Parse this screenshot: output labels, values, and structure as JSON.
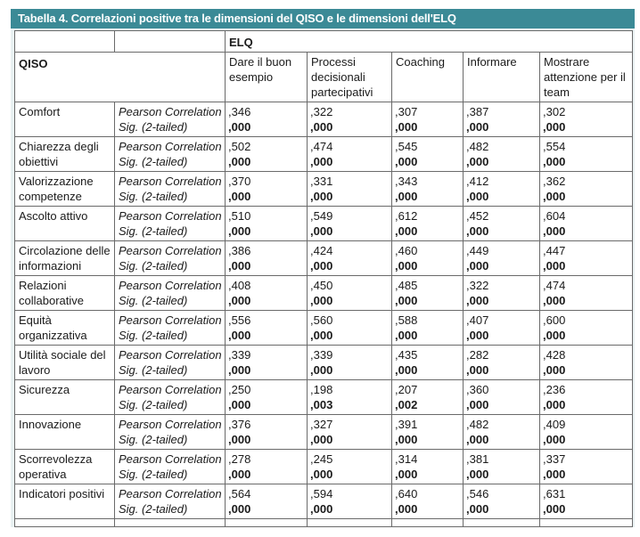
{
  "title": "Tabella 4. Correlazioni positive tra le dimensioni del QISO e le dimensioni dell'ELQ",
  "group_header": "ELQ",
  "row_header": "QISO",
  "columns": [
    "Dare il buon esempio",
    "Processi decisionali partecipativi",
    "Coaching",
    "Informare",
    "Mostrare attenzione per il team"
  ],
  "metric_labels": [
    "Pearson Correlation",
    "Sig. (2-tailed)"
  ],
  "rows": [
    {
      "name": "Comfort",
      "corr": [
        ",346",
        ",322",
        ",307",
        ",387",
        ",302"
      ],
      "sig": [
        ",000",
        ",000",
        ",000",
        ",000",
        ",000"
      ]
    },
    {
      "name": "Chiarezza degli obiettivi",
      "corr": [
        ",502",
        ",474",
        ",545",
        ",482",
        ",554"
      ],
      "sig": [
        ",000",
        ",000",
        ",000",
        ",000",
        ",000"
      ]
    },
    {
      "name": "Valorizzazione competenze",
      "corr": [
        ",370",
        ",331",
        ",343",
        ",412",
        ",362"
      ],
      "sig": [
        ",000",
        ",000",
        ",000",
        ",000",
        ",000"
      ]
    },
    {
      "name": "Ascolto attivo",
      "corr": [
        ",510",
        ",549",
        ",612",
        ",452",
        ",604"
      ],
      "sig": [
        ",000",
        ",000",
        ",000",
        ",000",
        ",000"
      ]
    },
    {
      "name": "Circolazione delle informazioni",
      "corr": [
        ",386",
        ",424",
        ",460",
        ",449",
        ",447"
      ],
      "sig": [
        ",000",
        ",000",
        ",000",
        ",000",
        ",000"
      ]
    },
    {
      "name": "Relazioni collaborative",
      "corr": [
        ",408",
        ",450",
        ",485",
        ",322",
        ",474"
      ],
      "sig": [
        ",000",
        ",000",
        ",000",
        ",000",
        ",000"
      ]
    },
    {
      "name": "Equità organizzativa",
      "corr": [
        ",556",
        ",560",
        ",588",
        ",407",
        ",600"
      ],
      "sig": [
        ",000",
        ",000",
        ",000",
        ",000",
        ",000"
      ]
    },
    {
      "name": "Utilità sociale del lavoro",
      "corr": [
        ",339",
        ",339",
        ",435",
        ",282",
        ",428"
      ],
      "sig": [
        ",000",
        ",000",
        ",000",
        ",000",
        ",000"
      ]
    },
    {
      "name": "Sicurezza",
      "corr": [
        ",250",
        ",198",
        ",207",
        ",360",
        ",236"
      ],
      "sig": [
        ",000",
        ",003",
        ",002",
        ",000",
        ",000"
      ]
    },
    {
      "name": "Innovazione",
      "corr": [
        ",376",
        ",327",
        ",391",
        ",482",
        ",409"
      ],
      "sig": [
        ",000",
        ",000",
        ",000",
        ",000",
        ",000"
      ]
    },
    {
      "name": "Scorrevolezza operativa",
      "corr": [
        ",278",
        ",245",
        ",314",
        ",381",
        ",337"
      ],
      "sig": [
        ",000",
        ",000",
        ",000",
        ",000",
        ",000"
      ]
    },
    {
      "name": "Indicatori positivi",
      "corr": [
        ",564",
        ",594",
        ",640",
        ",546",
        ",631"
      ],
      "sig": [
        ",000",
        ",000",
        ",000",
        ",000",
        ",000"
      ]
    }
  ]
}
